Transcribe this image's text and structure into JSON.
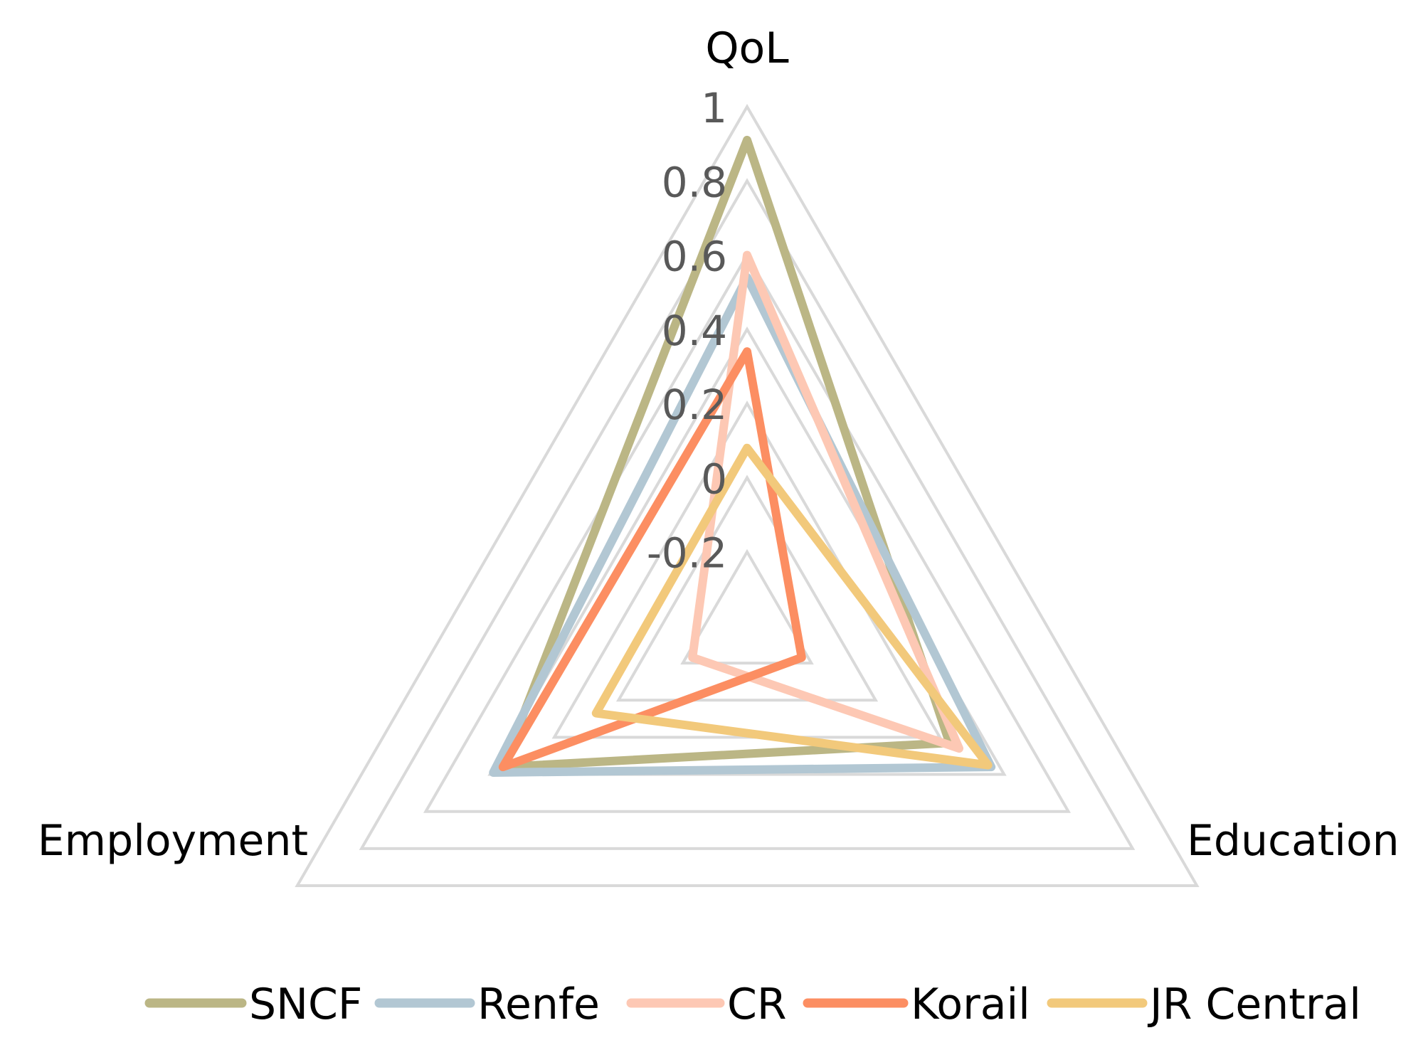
{
  "chart_data": {
    "type": "radar",
    "axes": [
      "QoL",
      "Education",
      "Employment"
    ],
    "ticks": [
      "1",
      "0.8",
      "0.6",
      "0.4",
      "0.2",
      "0",
      "-0.2"
    ],
    "rlim": [
      -0.4,
      1
    ],
    "grid": true,
    "legend_position": "bottom",
    "series": [
      {
        "name": "SNCF",
        "color": "#bbb685",
        "values": [
          0.91,
          0.23,
          0.36
        ]
      },
      {
        "name": "Renfe",
        "color": "#b2c7d3",
        "values": [
          0.54,
          0.36,
          0.39
        ]
      },
      {
        "name": "CR",
        "color": "#fdc8b4",
        "values": [
          0.6,
          0.26,
          -0.23
        ]
      },
      {
        "name": "Korail",
        "color": "#fc8e62",
        "values": [
          0.34,
          -0.23,
          0.36
        ]
      },
      {
        "name": "JR Central",
        "color": "#f2c97b",
        "values": [
          0.08,
          0.35,
          0.07
        ]
      }
    ]
  }
}
